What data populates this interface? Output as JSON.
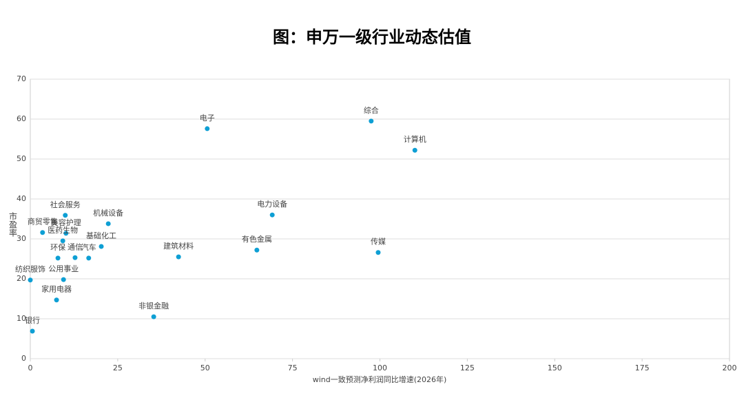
{
  "chart_data": {
    "type": "scatter",
    "title": "图：申万一级行业动态估值",
    "x_label": "wind一致预测净利润同比增速(2026年)",
    "y_label": "市盈率",
    "color": "#0e9fd4",
    "point_labels": [
      "电子",
      "综合",
      "计算机",
      "社会服务",
      "机械设备",
      "商贸零售",
      "美容护理",
      "医药生物",
      "基础化工",
      "环保",
      "通信",
      "汽车",
      "建筑材料",
      "有色金属",
      "电力设备",
      "传媒",
      "纺织服饰",
      "公用事业",
      "家用电器",
      "非银金融",
      "银行"
    ],
    "x": [
      50.6,
      97.5,
      110,
      10,
      22.3,
      3.5,
      10.2,
      9.3,
      20.3,
      7.9,
      12.8,
      16.7,
      42.4,
      64.8,
      69.2,
      99.5,
      0,
      9.5,
      7.5,
      35.3,
      0.6
    ],
    "values": [
      57.6,
      59.5,
      52.2,
      35.9,
      33.8,
      31.6,
      31.4,
      29.5,
      28.1,
      25.2,
      25.3,
      25.2,
      25.5,
      27.2,
      36,
      26.6,
      19.7,
      19.8,
      14.7,
      10.5,
      6.9
    ],
    "xlim": [
      0,
      200
    ],
    "xticks": [
      0,
      25,
      50,
      75,
      100,
      125,
      150,
      175,
      200
    ],
    "ylim": [
      0,
      70
    ],
    "yticks": [
      0,
      10,
      20,
      30,
      40,
      50,
      60,
      70
    ],
    "grid": true
  }
}
